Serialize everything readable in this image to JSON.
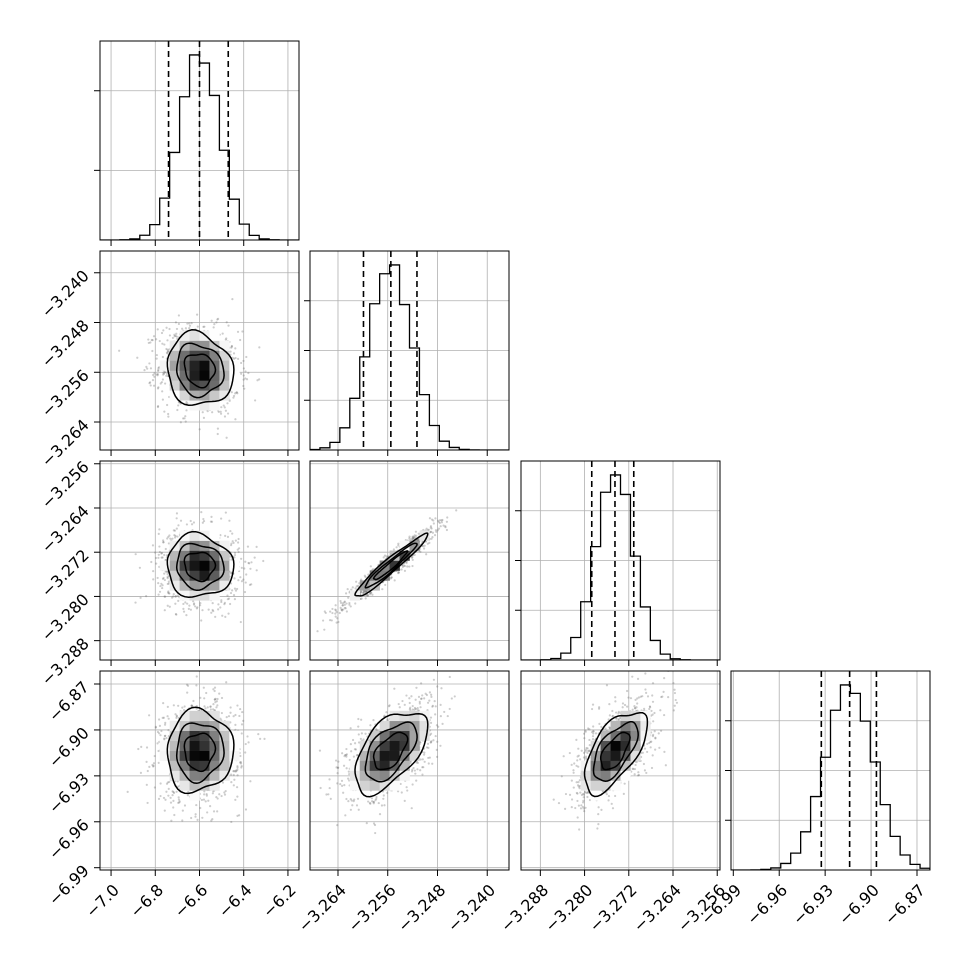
{
  "chart_data": {
    "type": "corner",
    "parameters": [
      {
        "ticks": [
          "−7.0",
          "−6.8",
          "−6.6",
          "−6.4",
          "−6.2"
        ],
        "range": [
          -7.05,
          -6.15
        ],
        "mean": -6.6,
        "sd": 0.09,
        "quantiles": [
          -6.74,
          -6.6,
          -6.47
        ]
      },
      {
        "ticks": [
          "−3.264",
          "−3.256",
          "−3.248",
          "−3.240"
        ],
        "range": [
          -3.2685,
          -3.2365
        ],
        "mean": -3.2556,
        "sd": 0.0035,
        "quantiles": [
          -3.2599,
          -3.2555,
          -3.2513
        ]
      },
      {
        "ticks": [
          "−3.288",
          "−3.280",
          "−3.272",
          "−3.264",
          "−3.256"
        ],
        "range": [
          -3.2915,
          -3.2555
        ],
        "mean": -3.2745,
        "sd": 0.0034,
        "quantiles": [
          -3.2787,
          -3.2745,
          -3.2711
        ]
      },
      {
        "ticks": [
          "−6.99",
          "−6.96",
          "−6.93",
          "−6.90",
          "−6.87"
        ],
        "range": [
          -6.9915,
          -6.8615
        ],
        "mean": -6.914,
        "sd": 0.016,
        "quantiles": [
          -6.9325,
          -6.914,
          -6.8965
        ]
      }
    ],
    "hist_yticks": [
      [
        0.35,
        0.75
      ],
      [
        0.25,
        0.5,
        0.75
      ],
      [
        0.25,
        0.5,
        0.75
      ],
      [
        0.25,
        0.5,
        0.75
      ]
    ],
    "correlations": {
      "1_0": -0.1,
      "2_0": -0.05,
      "2_1": 0.96,
      "3_0": 0.05,
      "3_1": 0.55,
      "3_2": 0.62
    },
    "marginal_histograms": true,
    "quantile_lines": "dashed",
    "contours": 3,
    "scatter_points": true,
    "grid": true,
    "colors": {
      "line": "#000000",
      "grid": "#b0b0b0",
      "scatter": "#6f6f6f"
    }
  }
}
